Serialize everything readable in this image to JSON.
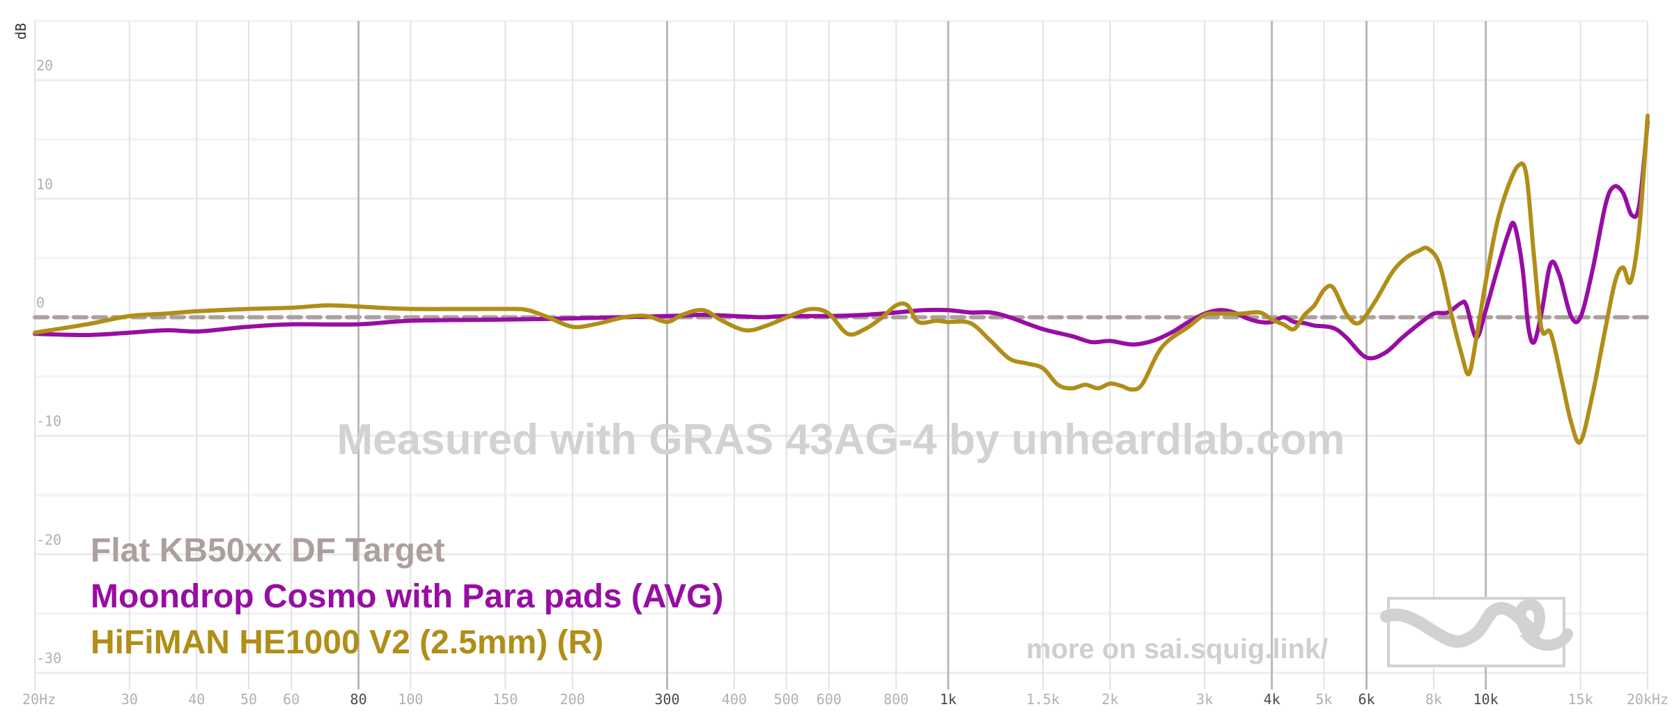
{
  "chart_data": {
    "type": "line",
    "title": "",
    "xlabel": "",
    "ylabel": "dB",
    "x_scale": "log",
    "xlim": [
      20,
      20000
    ],
    "ylim": [
      -32,
      25
    ],
    "grid": true,
    "legend_placement": "bottom-left",
    "x_ticks": [
      {
        "value": 20,
        "label": "20Hz",
        "bold": false
      },
      {
        "value": 30,
        "label": "30",
        "bold": false
      },
      {
        "value": 40,
        "label": "40",
        "bold": false
      },
      {
        "value": 50,
        "label": "50",
        "bold": false
      },
      {
        "value": 60,
        "label": "60",
        "bold": false
      },
      {
        "value": 80,
        "label": "80",
        "bold": true
      },
      {
        "value": 100,
        "label": "100",
        "bold": false
      },
      {
        "value": 150,
        "label": "150",
        "bold": false
      },
      {
        "value": 200,
        "label": "200",
        "bold": false
      },
      {
        "value": 300,
        "label": "300",
        "bold": true
      },
      {
        "value": 400,
        "label": "400",
        "bold": false
      },
      {
        "value": 500,
        "label": "500",
        "bold": false
      },
      {
        "value": 600,
        "label": "600",
        "bold": false
      },
      {
        "value": 800,
        "label": "800",
        "bold": false
      },
      {
        "value": 1000,
        "label": "1k",
        "bold": true
      },
      {
        "value": 1500,
        "label": "1.5k",
        "bold": false
      },
      {
        "value": 2000,
        "label": "2k",
        "bold": false
      },
      {
        "value": 3000,
        "label": "3k",
        "bold": false
      },
      {
        "value": 4000,
        "label": "4k",
        "bold": true
      },
      {
        "value": 5000,
        "label": "5k",
        "bold": false
      },
      {
        "value": 6000,
        "label": "6k",
        "bold": true
      },
      {
        "value": 8000,
        "label": "8k",
        "bold": false
      },
      {
        "value": 10000,
        "label": "10k",
        "bold": true
      },
      {
        "value": 15000,
        "label": "15k",
        "bold": false
      },
      {
        "value": 20000,
        "label": "20kHz",
        "bold": false
      }
    ],
    "y_ticks": [
      {
        "value": 20,
        "label": "20"
      },
      {
        "value": 10,
        "label": "10"
      },
      {
        "value": 0,
        "label": "0"
      },
      {
        "value": -10,
        "label": "-10"
      },
      {
        "value": -20,
        "label": "-20"
      },
      {
        "value": -30,
        "label": "-30"
      }
    ],
    "watermark": "Measured with GRAS 43AG-4 by unheardlab.com",
    "footer_link": "more on sai.squig.link/",
    "series": [
      {
        "name": "Flat KB50xx DF Target",
        "color": "#aba09d",
        "dashed": true,
        "points": [
          [
            20,
            0
          ],
          [
            20000,
            0
          ]
        ]
      },
      {
        "name": "Moondrop Cosmo with Para pads (AVG)",
        "color": "#980da3",
        "dashed": false,
        "points": [
          [
            20,
            -1.4
          ],
          [
            25,
            -1.5
          ],
          [
            30,
            -1.3
          ],
          [
            35,
            -1.1
          ],
          [
            40,
            -1.2
          ],
          [
            45,
            -1.0
          ],
          [
            50,
            -0.8
          ],
          [
            60,
            -0.6
          ],
          [
            80,
            -0.6
          ],
          [
            100,
            -0.3
          ],
          [
            150,
            -0.2
          ],
          [
            200,
            -0.1
          ],
          [
            300,
            0.1
          ],
          [
            350,
            0.2
          ],
          [
            400,
            0.1
          ],
          [
            450,
            0.0
          ],
          [
            500,
            0.1
          ],
          [
            600,
            0.1
          ],
          [
            700,
            0.2
          ],
          [
            800,
            0.4
          ],
          [
            900,
            0.6
          ],
          [
            1000,
            0.6
          ],
          [
            1100,
            0.4
          ],
          [
            1200,
            0.4
          ],
          [
            1300,
            0.0
          ],
          [
            1500,
            -1.0
          ],
          [
            1700,
            -1.6
          ],
          [
            1850,
            -2.1
          ],
          [
            2000,
            -2.0
          ],
          [
            2200,
            -2.3
          ],
          [
            2400,
            -2.0
          ],
          [
            2600,
            -1.3
          ],
          [
            2800,
            -0.4
          ],
          [
            3000,
            0.3
          ],
          [
            3200,
            0.6
          ],
          [
            3400,
            0.4
          ],
          [
            3600,
            -0.1
          ],
          [
            3800,
            -0.4
          ],
          [
            4000,
            -0.4
          ],
          [
            4200,
            0.0
          ],
          [
            4400,
            -0.4
          ],
          [
            4600,
            -0.5
          ],
          [
            4800,
            -0.7
          ],
          [
            5200,
            -0.9
          ],
          [
            5500,
            -1.7
          ],
          [
            6000,
            -3.4
          ],
          [
            6500,
            -3.0
          ],
          [
            7000,
            -1.7
          ],
          [
            7500,
            -0.6
          ],
          [
            8000,
            0.3
          ],
          [
            8500,
            0.4
          ],
          [
            9000,
            1.2
          ],
          [
            9200,
            1.0
          ],
          [
            9600,
            -1.7
          ],
          [
            10000,
            0.6
          ],
          [
            10500,
            4.0
          ],
          [
            11000,
            7.0
          ],
          [
            11300,
            7.8
          ],
          [
            11700,
            4.2
          ],
          [
            12000,
            -0.8
          ],
          [
            12300,
            -2.1
          ],
          [
            12700,
            0.4
          ],
          [
            13200,
            4.5
          ],
          [
            13700,
            3.6
          ],
          [
            14400,
            0.1
          ],
          [
            15000,
            0.0
          ],
          [
            15800,
            4.0
          ],
          [
            16700,
            9.5
          ],
          [
            17300,
            11.0
          ],
          [
            18000,
            10.5
          ],
          [
            18700,
            8.6
          ],
          [
            19300,
            9.5
          ],
          [
            20000,
            16.5
          ]
        ]
      },
      {
        "name": "HiFiMAN HE1000 V2 (2.5mm) (R)",
        "color": "#b08e17",
        "dashed": false,
        "points": [
          [
            20,
            -1.3
          ],
          [
            25,
            -0.6
          ],
          [
            30,
            0.1
          ],
          [
            35,
            0.3
          ],
          [
            40,
            0.5
          ],
          [
            50,
            0.7
          ],
          [
            60,
            0.8
          ],
          [
            70,
            1.0
          ],
          [
            80,
            0.9
          ],
          [
            100,
            0.7
          ],
          [
            150,
            0.7
          ],
          [
            165,
            0.6
          ],
          [
            180,
            0.0
          ],
          [
            200,
            -0.8
          ],
          [
            220,
            -0.6
          ],
          [
            250,
            0.0
          ],
          [
            275,
            0.1
          ],
          [
            300,
            -0.4
          ],
          [
            320,
            0.2
          ],
          [
            350,
            0.6
          ],
          [
            380,
            -0.3
          ],
          [
            420,
            -1.1
          ],
          [
            460,
            -0.7
          ],
          [
            520,
            0.3
          ],
          [
            560,
            0.7
          ],
          [
            600,
            0.3
          ],
          [
            650,
            -1.4
          ],
          [
            700,
            -1.0
          ],
          [
            750,
            -0.1
          ],
          [
            800,
            1.0
          ],
          [
            840,
            1.0
          ],
          [
            880,
            -0.4
          ],
          [
            950,
            -0.3
          ],
          [
            1000,
            -0.4
          ],
          [
            1100,
            -0.5
          ],
          [
            1200,
            -2.0
          ],
          [
            1300,
            -3.5
          ],
          [
            1400,
            -3.9
          ],
          [
            1500,
            -4.3
          ],
          [
            1600,
            -5.7
          ],
          [
            1700,
            -6.0
          ],
          [
            1800,
            -5.7
          ],
          [
            1900,
            -6.0
          ],
          [
            2000,
            -5.6
          ],
          [
            2100,
            -5.8
          ],
          [
            2200,
            -6.1
          ],
          [
            2300,
            -5.6
          ],
          [
            2500,
            -2.5
          ],
          [
            2800,
            -0.8
          ],
          [
            3000,
            0.2
          ],
          [
            3200,
            0.3
          ],
          [
            3500,
            0.3
          ],
          [
            3800,
            0.4
          ],
          [
            4000,
            -0.2
          ],
          [
            4200,
            -0.6
          ],
          [
            4400,
            -1.0
          ],
          [
            4600,
            0.2
          ],
          [
            4800,
            1.0
          ],
          [
            5000,
            2.3
          ],
          [
            5200,
            2.5
          ],
          [
            5500,
            0.3
          ],
          [
            5800,
            -0.5
          ],
          [
            6200,
            1.2
          ],
          [
            6700,
            3.8
          ],
          [
            7100,
            5.0
          ],
          [
            7500,
            5.6
          ],
          [
            7800,
            5.8
          ],
          [
            8200,
            4.5
          ],
          [
            8600,
            0.5
          ],
          [
            9000,
            -3.0
          ],
          [
            9300,
            -4.8
          ],
          [
            9600,
            -1.8
          ],
          [
            10000,
            3.0
          ],
          [
            10500,
            8.0
          ],
          [
            11000,
            11.0
          ],
          [
            11500,
            12.8
          ],
          [
            11900,
            12.0
          ],
          [
            12300,
            5.0
          ],
          [
            12700,
            -1.0
          ],
          [
            13200,
            -1.3
          ],
          [
            13800,
            -5.0
          ],
          [
            14400,
            -8.8
          ],
          [
            15000,
            -10.5
          ],
          [
            15800,
            -6.5
          ],
          [
            16600,
            -1.5
          ],
          [
            17400,
            3.0
          ],
          [
            18000,
            4.2
          ],
          [
            18600,
            3.0
          ],
          [
            19300,
            7.5
          ],
          [
            20000,
            17.0
          ]
        ]
      }
    ]
  }
}
